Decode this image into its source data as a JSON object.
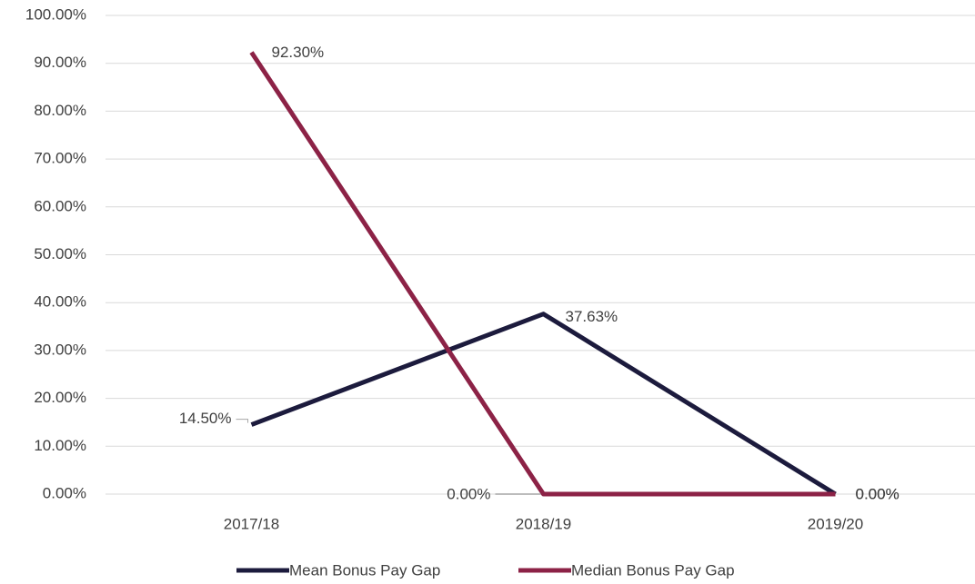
{
  "chart_data": {
    "type": "line",
    "categories": [
      "2017/18",
      "2018/19",
      "2019/20"
    ],
    "series": [
      {
        "name": "Mean Bonus Pay Gap",
        "color": "#1c1b3d",
        "values": [
          14.5,
          37.63,
          0
        ],
        "value_labels": [
          "14.50%",
          "37.63%",
          "0.00%"
        ]
      },
      {
        "name": "Median Bonus Pay Gap",
        "color": "#8c2246",
        "values": [
          92.3,
          0,
          0
        ],
        "value_labels": [
          "92.30%",
          "0.00%",
          "0.00%"
        ]
      }
    ],
    "ylim": [
      0,
      100
    ],
    "yticks": [
      {
        "value": 0,
        "label": "0.00%"
      },
      {
        "value": 10,
        "label": "10.00%"
      },
      {
        "value": 20,
        "label": "20.00%"
      },
      {
        "value": 30,
        "label": "30.00%"
      },
      {
        "value": 40,
        "label": "40.00%"
      },
      {
        "value": 50,
        "label": "50.00%"
      },
      {
        "value": 60,
        "label": "60.00%"
      },
      {
        "value": 70,
        "label": "70.00%"
      },
      {
        "value": 80,
        "label": "80.00%"
      },
      {
        "value": 90,
        "label": "90.00%"
      },
      {
        "value": 100,
        "label": "100.00%"
      }
    ],
    "grid": true
  }
}
